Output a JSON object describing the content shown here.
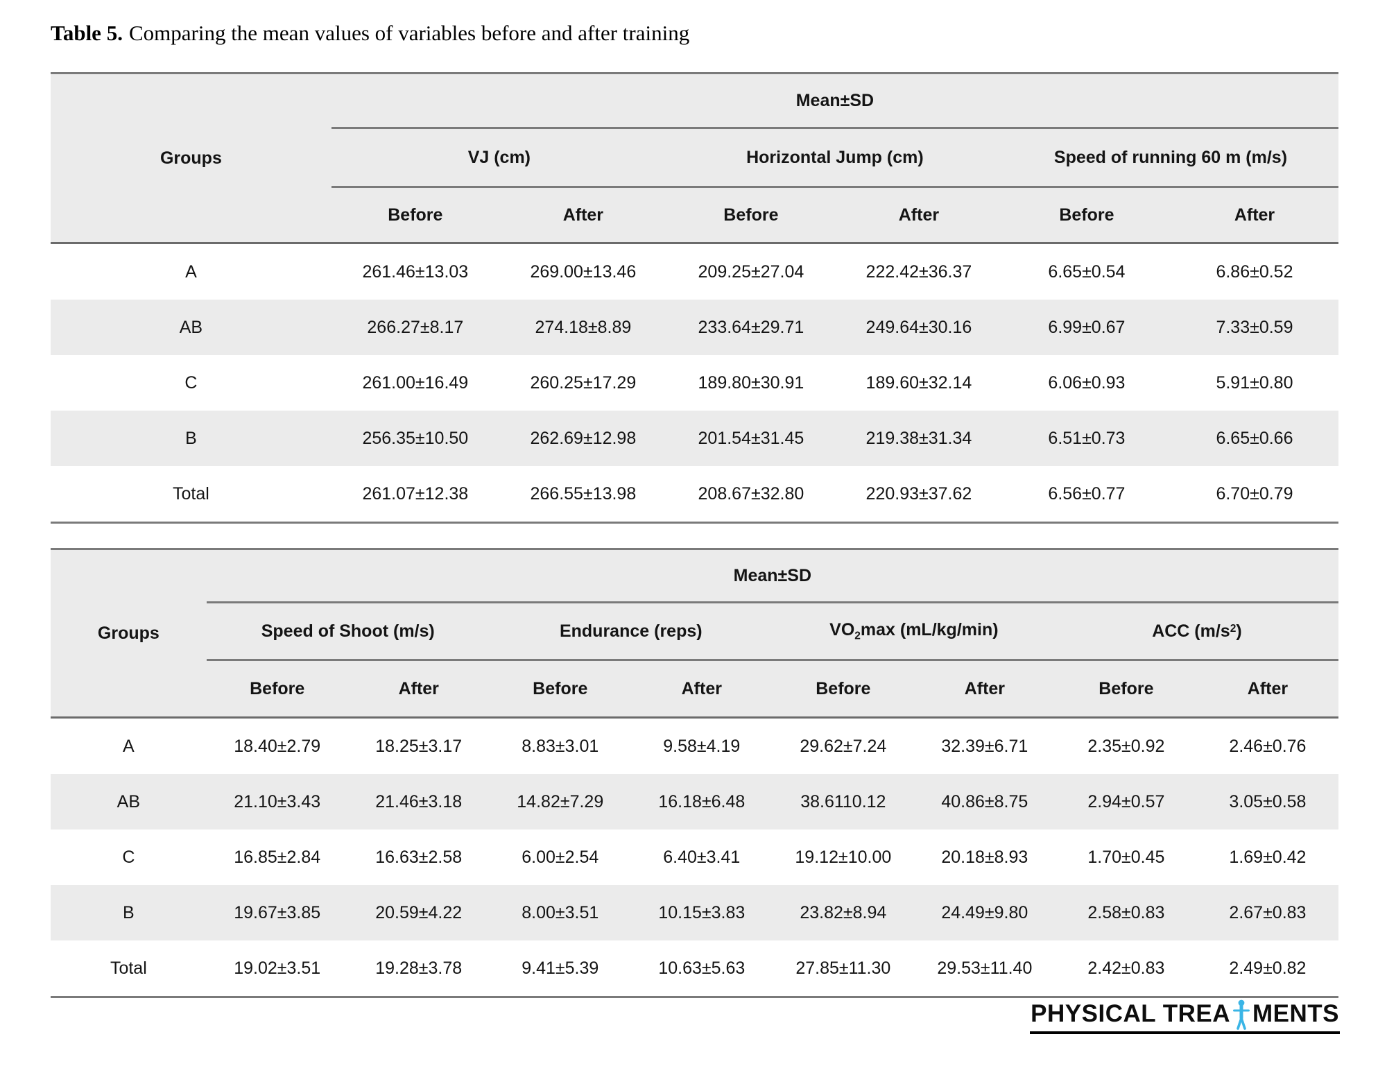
{
  "title": {
    "label": "Table 5.",
    "text": "Comparing the mean values of variables before and after training"
  },
  "colors": {
    "header_bg": "#ebebeb",
    "stripe_bg": "#ebebeb",
    "rule_gray": "#7a7a7a",
    "text": "#141414",
    "logo_blue": "#3ab5e6"
  },
  "tables": [
    {
      "mean_sd_label": "Mean±SD",
      "groups_label": "Groups",
      "before_label": "Before",
      "after_label": "After",
      "variable_groups": [
        {
          "pre": "VJ (cm)",
          "sub": "",
          "sup": "",
          "post": ""
        },
        {
          "pre": "Horizontal Jump (cm)",
          "sub": "",
          "sup": "",
          "post": ""
        },
        {
          "pre": "Speed of running 60 m (m/s)",
          "sub": "",
          "sup": "",
          "post": ""
        }
      ],
      "rows": [
        {
          "group": "A",
          "values": [
            "261.46±13.03",
            "269.00±13.46",
            "209.25±27.04",
            "222.42±36.37",
            "6.65±0.54",
            "6.86±0.52"
          ]
        },
        {
          "group": "AB",
          "values": [
            "266.27±8.17",
            "274.18±8.89",
            "233.64±29.71",
            "249.64±30.16",
            "6.99±0.67",
            "7.33±0.59"
          ]
        },
        {
          "group": "C",
          "values": [
            "261.00±16.49",
            "260.25±17.29",
            "189.80±30.91",
            "189.60±32.14",
            "6.06±0.93",
            "5.91±0.80"
          ]
        },
        {
          "group": "B",
          "values": [
            "256.35±10.50",
            "262.69±12.98",
            "201.54±31.45",
            "219.38±31.34",
            "6.51±0.73",
            "6.65±0.66"
          ]
        },
        {
          "group": "Total",
          "values": [
            "261.07±12.38",
            "266.55±13.98",
            "208.67±32.80",
            "220.93±37.62",
            "6.56±0.77",
            "6.70±0.79"
          ]
        }
      ]
    },
    {
      "mean_sd_label": "Mean±SD",
      "groups_label": "Groups",
      "before_label": "Before",
      "after_label": "After",
      "variable_groups": [
        {
          "pre": "Speed of Shoot (m/s)",
          "sub": "",
          "sup": "",
          "post": ""
        },
        {
          "pre": "Endurance (reps)",
          "sub": "",
          "sup": "",
          "post": ""
        },
        {
          "pre": "VO",
          "sub": "2",
          "sup": "",
          "post": "max (mL/kg/min)"
        },
        {
          "pre": "ACC (m/s",
          "sub": "",
          "sup": "2",
          "post": ")"
        }
      ],
      "rows": [
        {
          "group": "A",
          "values": [
            "18.40±2.79",
            "18.25±3.17",
            "8.83±3.01",
            "9.58±4.19",
            "29.62±7.24",
            "32.39±6.71",
            "2.35±0.92",
            "2.46±0.76"
          ]
        },
        {
          "group": "AB",
          "values": [
            "21.10±3.43",
            "21.46±3.18",
            "14.82±7.29",
            "16.18±6.48",
            "38.6110.12",
            "40.86±8.75",
            "2.94±0.57",
            "3.05±0.58"
          ]
        },
        {
          "group": "C",
          "values": [
            "16.85±2.84",
            "16.63±2.58",
            "6.00±2.54",
            "6.40±3.41",
            "19.12±10.00",
            "20.18±8.93",
            "1.70±0.45",
            "1.69±0.42"
          ]
        },
        {
          "group": "B",
          "values": [
            "19.67±3.85",
            "20.59±4.22",
            "8.00±3.51",
            "10.15±3.83",
            "23.82±8.94",
            "24.49±9.80",
            "2.58±0.83",
            "2.67±0.83"
          ]
        },
        {
          "group": "Total",
          "values": [
            "19.02±3.51",
            "19.28±3.78",
            "9.41±5.39",
            "10.63±5.63",
            "27.85±11.30",
            "29.53±11.40",
            "2.42±0.83",
            "2.49±0.82"
          ]
        }
      ]
    }
  ],
  "logo": {
    "text_left": "PHYSICAL TREA",
    "text_right": "MENTS",
    "person_icon": "person-arms-out-icon"
  }
}
